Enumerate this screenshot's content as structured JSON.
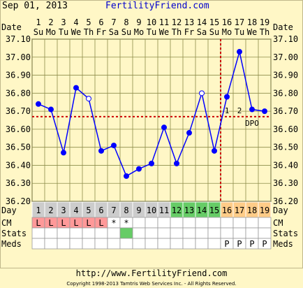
{
  "header": {
    "date": "Sep 01, 2013",
    "brand": "FertilityFriend.com"
  },
  "row_labels": {
    "date": "Date",
    "day": "Day",
    "cm": "CM",
    "stats": "Stats",
    "meds": "Meds"
  },
  "footer": {
    "url": "http://www.FertilityFriend.com",
    "copyright": "Copyright 1998-2013 Tamtris Web Services Inc. - All Rights Reserved."
  },
  "chart_data": {
    "type": "line",
    "dates": [
      "1",
      "2",
      "3",
      "4",
      "5",
      "6",
      "7",
      "8",
      "9",
      "10",
      "11",
      "12",
      "13",
      "14",
      "15",
      "16",
      "17",
      "18",
      "19"
    ],
    "weekdays": [
      "Su",
      "Mo",
      "Tu",
      "We",
      "Th",
      "Fr",
      "Sa",
      "Su",
      "Mo",
      "Tu",
      "We",
      "Th",
      "Fr",
      "Sa",
      "Su",
      "Mo",
      "Tu",
      "We",
      "Th"
    ],
    "cycle_days": [
      "1",
      "2",
      "3",
      "4",
      "5",
      "6",
      "7",
      "8",
      "9",
      "10",
      "11",
      "12",
      "13",
      "14",
      "15",
      "16",
      "17",
      "18",
      "19"
    ],
    "y_ticks": [
      "37.10",
      "37.00",
      "36.90",
      "36.80",
      "36.70",
      "36.60",
      "36.50",
      "36.40",
      "36.30",
      "36.20"
    ],
    "ylim": [
      36.2,
      37.1
    ],
    "temperatures": [
      36.74,
      36.71,
      36.47,
      36.83,
      36.77,
      36.48,
      36.51,
      36.34,
      36.38,
      36.41,
      36.61,
      36.41,
      36.58,
      36.8,
      36.48,
      36.78,
      37.03,
      36.71,
      36.7
    ],
    "open_circle_days": [
      5,
      14
    ],
    "coverline": 36.67,
    "ovulation_day": 15,
    "dpo_markers": [
      "1",
      "2"
    ],
    "dpo_label": "DPO",
    "fertile_days": [
      12,
      13,
      14,
      15
    ],
    "luteal_days": [
      16,
      17,
      18,
      19
    ],
    "cm": [
      "L",
      "L",
      "L",
      "L",
      "L",
      "L",
      "*",
      "*",
      "",
      "",
      "",
      "",
      "",
      "",
      "",
      "",
      "",
      "",
      ""
    ],
    "stats_marked_days": [
      8
    ],
    "meds": [
      "",
      "",
      "",
      "",
      "",
      "",
      "",
      "",
      "",
      "",
      "",
      "",
      "",
      "",
      "",
      "P",
      "P",
      "P",
      "P"
    ],
    "colors": {
      "line": "#0000ff",
      "coverline": "#cc0000",
      "grid": "#8c8c4a",
      "plot_bg": "#fff7c6",
      "day_gray": "#cccccc",
      "day_green": "#66cc66",
      "day_orange": "#ffcc88",
      "cm_pink": "#ff9999",
      "stats_green": "#66cc66"
    }
  }
}
